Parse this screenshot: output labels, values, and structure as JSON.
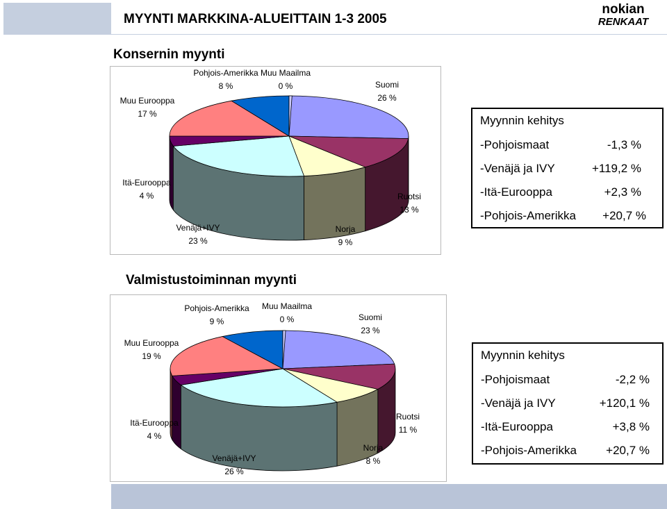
{
  "header": {
    "title": "MYYNTI MARKKINA-ALUEITTAIN 1-3 2005",
    "logo_top": "nokian",
    "logo_bottom": "RENKAAT"
  },
  "chart_data": [
    {
      "type": "pie",
      "title": "Konsernin myynti",
      "categories": [
        "Suomi",
        "Ruotsi",
        "Norja",
        "Venäjä+IVY",
        "Itä-Eurooppa",
        "Muu Eurooppa",
        "Pohjois-Amerikka",
        "Muu Maailma"
      ],
      "values": [
        26,
        13,
        9,
        23,
        4,
        17,
        8,
        0
      ],
      "labels": [
        "26 %",
        "13 %",
        "9 %",
        "23 %",
        "4 %",
        "17 %",
        "8 %",
        "0 %"
      ],
      "colors": [
        "#9999ff",
        "#993366",
        "#ffffcc",
        "#ccffff",
        "#660066",
        "#ff8080",
        "#0066cc",
        "#ccccff"
      ]
    },
    {
      "type": "pie",
      "title": "Valmistustoiminnan myynti",
      "categories": [
        "Suomi",
        "Ruotsi",
        "Norja",
        "Venäjä+IVY",
        "Itä-Eurooppa",
        "Muu Eurooppa",
        "Pohjois-Amerikka",
        "Muu Maailma"
      ],
      "values": [
        23,
        11,
        8,
        26,
        4,
        19,
        9,
        0
      ],
      "labels": [
        "23 %",
        "11 %",
        "8 %",
        "26 %",
        "4 %",
        "19 %",
        "9 %",
        "0 %"
      ],
      "colors": [
        "#9999ff",
        "#993366",
        "#ffffcc",
        "#ccffff",
        "#660066",
        "#ff8080",
        "#0066cc",
        "#ccccff"
      ]
    }
  ],
  "kehitys": [
    {
      "heading": "Myynnin kehitys",
      "rows": [
        {
          "label": "-Pohjoismaat",
          "value": "-1,3 %"
        },
        {
          "label": "-Venäjä ja IVY",
          "value": "+119,2 %"
        },
        {
          "label": "-Itä-Eurooppa",
          "value": "+2,3 %"
        },
        {
          "label": "-Pohjois-Amerikka",
          "value": "+20,7 %"
        }
      ]
    },
    {
      "heading": "Myynnin kehitys",
      "rows": [
        {
          "label": "-Pohjoismaat",
          "value": "-2,2 %"
        },
        {
          "label": "-Venäjä ja IVY",
          "value": "+120,1 %"
        },
        {
          "label": "-Itä-Eurooppa",
          "value": "+3,8 %"
        },
        {
          "label": "-Pohjois-Amerikka",
          "value": "+20,7 %"
        }
      ]
    }
  ]
}
